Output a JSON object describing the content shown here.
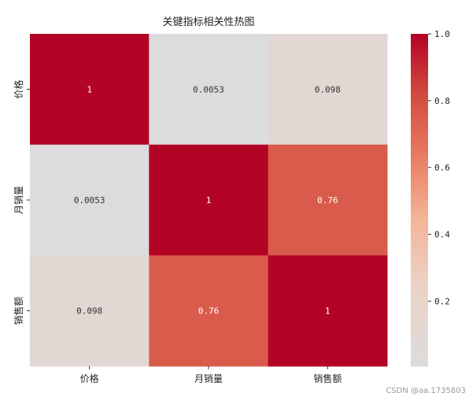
{
  "chart_data": {
    "type": "heatmap",
    "title": "关键指标相关性热图",
    "x_labels": [
      "价格",
      "月销量",
      "销售额"
    ],
    "y_labels": [
      "价格",
      "月销量",
      "销售额"
    ],
    "values": [
      [
        1,
        0.0053,
        0.098
      ],
      [
        0.0053,
        1,
        0.76
      ],
      [
        0.098,
        0.76,
        1
      ]
    ],
    "annotations": [
      [
        "1",
        "0.0053",
        "0.098"
      ],
      [
        "0.0053",
        "1",
        "0.76"
      ],
      [
        "0.098",
        "0.76",
        "1"
      ]
    ],
    "colormap": "coolwarm",
    "colorbar": {
      "range": [
        0.0053,
        1.0
      ],
      "ticks": [
        0.2,
        0.4,
        0.6,
        0.8,
        1.0
      ],
      "tick_labels": [
        "0.2",
        "0.4",
        "0.6",
        "0.8",
        "1.0"
      ],
      "colors": [
        "#dcdcdc",
        "#b40426"
      ]
    }
  },
  "watermark": "CSDN @aa.1735803"
}
